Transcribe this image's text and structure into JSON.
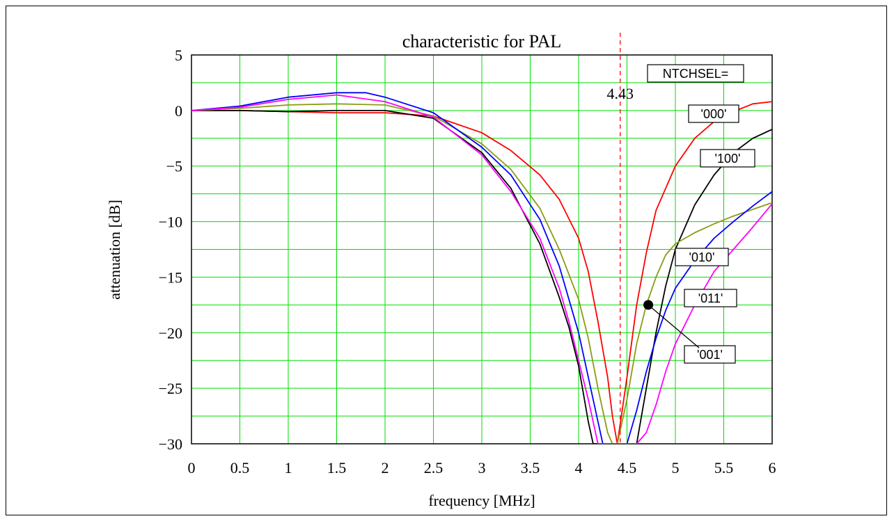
{
  "chart_data": {
    "type": "line",
    "title": "characteristic for PAL",
    "xlabel": "frequency [MHz]",
    "ylabel": "attenuation [dB]",
    "xlim": [
      0,
      6
    ],
    "ylim": [
      -30,
      5
    ],
    "x_ticks": [
      "0",
      "0.5",
      "1",
      "1.5",
      "2",
      "2.5",
      "3",
      "3.5",
      "4",
      "4.5",
      "5",
      "5.5",
      "6"
    ],
    "y_ticks": [
      "5",
      "0",
      "−5",
      "−10",
      "−15",
      "−20",
      "−25",
      "−30"
    ],
    "grid": true,
    "marker": {
      "x": 4.43,
      "label": "4.43",
      "color": "#ff0000",
      "style": "dashed"
    },
    "legend_title": "NTCHSEL=",
    "annotation_point": {
      "x": 4.72,
      "y": -17.5
    },
    "series": [
      {
        "name": "'000'",
        "color": "#ff0000",
        "x": [
          0,
          0.5,
          1,
          1.5,
          2,
          2.5,
          3,
          3.3,
          3.6,
          3.8,
          4.0,
          4.1,
          4.2,
          4.3,
          4.35,
          4.4,
          4.45,
          4.5,
          4.6,
          4.7,
          4.8,
          5.0,
          5.2,
          5.4,
          5.6,
          5.8,
          6.0
        ],
        "y": [
          0,
          0,
          -0.1,
          -0.2,
          -0.2,
          -0.5,
          -2.0,
          -3.6,
          -5.8,
          -8.0,
          -11.5,
          -14.5,
          -19.0,
          -24.0,
          -27.5,
          -30.0,
          -27.0,
          -24.0,
          -17.5,
          -12.8,
          -9.0,
          -5.0,
          -2.5,
          -1.0,
          -0.1,
          0.6,
          0.8
        ]
      },
      {
        "name": "'100'",
        "color": "#000000",
        "x": [
          0,
          0.5,
          1,
          1.5,
          2,
          2.5,
          3,
          3.3,
          3.6,
          3.8,
          3.9,
          4.0,
          4.1,
          4.15,
          4.2,
          4.3,
          4.4,
          4.5,
          4.6,
          4.7,
          4.8,
          4.9,
          5.0,
          5.2,
          5.4,
          5.6,
          5.8,
          6.0
        ],
        "y": [
          0,
          0,
          -0.1,
          0,
          0,
          -0.7,
          -3.8,
          -7.0,
          -12.0,
          -16.8,
          -19.5,
          -23.0,
          -28.0,
          -30.0,
          -30.0,
          -30.0,
          -30.0,
          -30.0,
          -30.0,
          -25.0,
          -20.0,
          -15.8,
          -12.5,
          -8.5,
          -5.8,
          -3.8,
          -2.5,
          -1.7
        ]
      },
      {
        "name": "'010'",
        "color": "#8b9b15",
        "x": [
          0,
          0.5,
          1,
          1.5,
          2,
          2.5,
          3,
          3.3,
          3.6,
          3.8,
          4.0,
          4.1,
          4.2,
          4.3,
          4.35,
          4.4,
          4.5,
          4.6,
          4.7,
          4.8,
          4.9,
          5.0,
          5.2,
          5.4,
          5.6,
          5.8,
          6.0
        ],
        "y": [
          0,
          0.2,
          0.5,
          0.6,
          0.5,
          -0.5,
          -3.0,
          -5.3,
          -8.8,
          -12.5,
          -17.0,
          -20.5,
          -25.0,
          -29.0,
          -30.0,
          -30.0,
          -26.0,
          -21.0,
          -17.5,
          -15.0,
          -13.0,
          -12.0,
          -11.0,
          -10.2,
          -9.5,
          -8.9,
          -8.3
        ]
      },
      {
        "name": "'011'",
        "color": "#0000ff",
        "x": [
          0,
          0.5,
          1,
          1.5,
          1.8,
          2,
          2.5,
          3,
          3.3,
          3.6,
          3.8,
          4.0,
          4.1,
          4.2,
          4.25,
          4.3,
          4.5,
          4.6,
          4.7,
          4.8,
          4.9,
          5.0,
          5.2,
          5.4,
          5.6,
          5.8,
          6.0
        ],
        "y": [
          0,
          0.4,
          1.2,
          1.6,
          1.6,
          1.2,
          -0.2,
          -3.3,
          -5.8,
          -9.8,
          -14.0,
          -20.0,
          -24.0,
          -28.0,
          -30.0,
          -30.0,
          -30.0,
          -27.0,
          -23.5,
          -20.5,
          -18.0,
          -16.0,
          -13.5,
          -11.5,
          -10.0,
          -8.6,
          -7.3
        ]
      },
      {
        "name": "'001'",
        "color": "#ff00ff",
        "x": [
          0,
          0.5,
          1,
          1.5,
          2,
          2.5,
          3,
          3.3,
          3.6,
          3.8,
          3.9,
          4.0,
          4.1,
          4.2,
          4.3,
          4.5,
          4.6,
          4.7,
          4.8,
          4.9,
          5.0,
          5.2,
          5.4,
          5.6,
          5.8,
          6.0
        ],
        "y": [
          0,
          0.3,
          1.0,
          1.4,
          0.8,
          -0.6,
          -4.0,
          -7.3,
          -11.5,
          -16.0,
          -19.0,
          -22.5,
          -26.0,
          -30.0,
          -30.0,
          -30.0,
          -30.0,
          -29.0,
          -26.5,
          -23.5,
          -21.0,
          -17.5,
          -14.5,
          -12.5,
          -10.5,
          -8.4
        ]
      }
    ]
  }
}
